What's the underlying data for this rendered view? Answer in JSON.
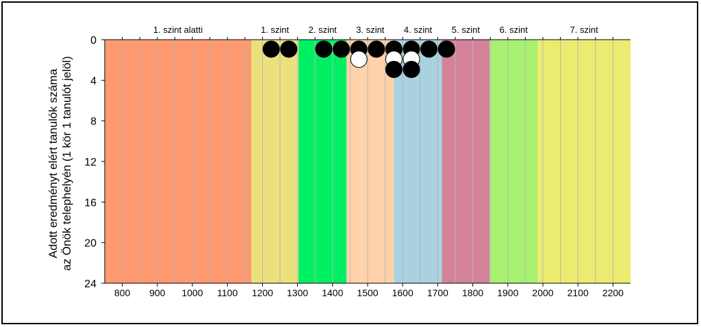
{
  "chart_data": {
    "type": "scatter",
    "ylabel_lines": [
      "Adott eredményt elért tanulók száma",
      "az Önök telephelyén (1 kör 1 tanulót jelöl)"
    ],
    "xlabel": "",
    "xlim": [
      750,
      2250
    ],
    "ylim": [
      0,
      24
    ],
    "y_inverted": true,
    "x_ticks": [
      800,
      900,
      1000,
      1100,
      1200,
      1300,
      1400,
      1500,
      1600,
      1700,
      1800,
      1900,
      2000,
      2100,
      2200
    ],
    "y_ticks": [
      0,
      4,
      8,
      12,
      16,
      20,
      24
    ],
    "x_gridlines": [
      800,
      850,
      900,
      950,
      1000,
      1050,
      1100,
      1150,
      1200,
      1250,
      1300,
      1350,
      1400,
      1450,
      1500,
      1550,
      1600,
      1650,
      1700,
      1750,
      1800,
      1850,
      1900,
      1950,
      2000,
      2050,
      2100,
      2150,
      2200
    ],
    "levels": [
      {
        "label": "1. szint alatti",
        "from": 750,
        "to": 1168,
        "color": "#ff9a70"
      },
      {
        "label": "1. szint",
        "from": 1168,
        "to": 1303,
        "color": "#ebe07e"
      },
      {
        "label": "2. szint",
        "from": 1303,
        "to": 1440,
        "color": "#00f064"
      },
      {
        "label": "3. szint",
        "from": 1440,
        "to": 1575,
        "color": "#ffd2aa"
      },
      {
        "label": "4. szint",
        "from": 1575,
        "to": 1712,
        "color": "#a8d2e0"
      },
      {
        "label": "5. szint",
        "from": 1712,
        "to": 1848,
        "color": "#d4829a"
      },
      {
        "label": "6. szint",
        "from": 1848,
        "to": 1985,
        "color": "#a8f070"
      },
      {
        "label": "7. szint",
        "from": 1985,
        "to": 2250,
        "color": "#ebeb70"
      }
    ],
    "points": [
      {
        "x": 1225,
        "y": 1,
        "fill": "black"
      },
      {
        "x": 1275,
        "y": 1,
        "fill": "black"
      },
      {
        "x": 1375,
        "y": 1,
        "fill": "black"
      },
      {
        "x": 1425,
        "y": 1,
        "fill": "black"
      },
      {
        "x": 1475,
        "y": 1,
        "fill": "black"
      },
      {
        "x": 1475,
        "y": 2,
        "fill": "white"
      },
      {
        "x": 1525,
        "y": 1,
        "fill": "black"
      },
      {
        "x": 1575,
        "y": 1,
        "fill": "black"
      },
      {
        "x": 1575,
        "y": 2,
        "fill": "white"
      },
      {
        "x": 1575,
        "y": 3,
        "fill": "black"
      },
      {
        "x": 1625,
        "y": 1,
        "fill": "black"
      },
      {
        "x": 1625,
        "y": 2,
        "fill": "white"
      },
      {
        "x": 1625,
        "y": 3,
        "fill": "black"
      },
      {
        "x": 1675,
        "y": 1,
        "fill": "black"
      },
      {
        "x": 1725,
        "y": 1,
        "fill": "black"
      }
    ],
    "grid": true,
    "legend": "none"
  }
}
